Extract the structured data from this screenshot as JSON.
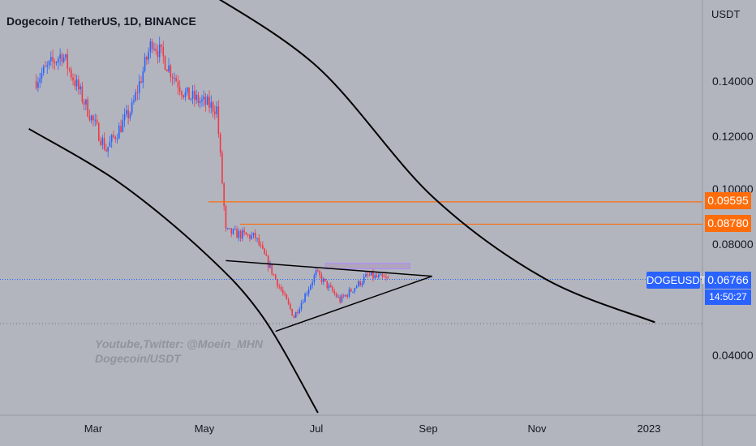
{
  "header": {
    "title": "Dogecoin / TetherUS, 1D, BINANCE"
  },
  "axis": {
    "unit": "USDT",
    "x_labels": [
      "Mar",
      "May",
      "Jul",
      "Sep",
      "Nov",
      "2023"
    ],
    "y_labels": [
      "0.14000",
      "0.12000",
      "0.10000",
      "0.08000",
      "0.04000"
    ]
  },
  "price_tags": {
    "resistance_1": "0.09595",
    "resistance_2": "0.08780",
    "symbol": "DOGEUSDT",
    "last_price": "0.06766",
    "countdown": "14:50:27"
  },
  "watermark": {
    "line1": "Youtube,Twitter: @Moein_MHN",
    "line2": "Dogecoin/USDT"
  },
  "colors": {
    "background": "#b2b5be",
    "up_candle": "#2962ff",
    "down_candle": "#f23645",
    "horizontal_levels": "#ff6d0a",
    "last_price_line": "#2962ff",
    "trendlines": "#000000"
  },
  "chart_data": {
    "type": "candlestick",
    "title": "Dogecoin / TetherUS, 1D, BINANCE",
    "ylabel": "USDT",
    "ylim": [
      0.021,
      0.17
    ],
    "x_ticks": [
      "Mar",
      "May",
      "Jul",
      "Sep",
      "Nov",
      "2023"
    ],
    "y_ticks": [
      0.04,
      0.08,
      0.1,
      0.12,
      0.14
    ],
    "series": [
      {
        "segments": [
          {
            "from_date": "2022-01-28",
            "to_date": "2022-02-12",
            "from_close": 0.14,
            "to_close": 0.15
          },
          {
            "from_date": "2022-02-12",
            "to_date": "2022-03-08",
            "from_close": 0.15,
            "to_close": 0.115
          },
          {
            "from_date": "2022-03-08",
            "to_date": "2022-03-22",
            "from_close": 0.115,
            "to_close": 0.13
          },
          {
            "from_date": "2022-03-22",
            "to_date": "2022-04-02",
            "from_close": 0.13,
            "to_close": 0.155
          },
          {
            "from_date": "2022-04-02",
            "to_date": "2022-04-20",
            "from_close": 0.155,
            "to_close": 0.135
          },
          {
            "from_date": "2022-04-20",
            "to_date": "2022-05-07",
            "from_close": 0.135,
            "to_close": 0.13
          },
          {
            "from_date": "2022-05-07",
            "to_date": "2022-05-12",
            "from_close": 0.13,
            "to_close": 0.085
          },
          {
            "from_date": "2022-05-12",
            "to_date": "2022-05-28",
            "from_close": 0.085,
            "to_close": 0.083
          },
          {
            "from_date": "2022-05-28",
            "to_date": "2022-06-18",
            "from_close": 0.083,
            "to_close": 0.054
          },
          {
            "from_date": "2022-06-18",
            "to_date": "2022-06-30",
            "from_close": 0.054,
            "to_close": 0.07
          },
          {
            "from_date": "2022-06-30",
            "to_date": "2022-07-13",
            "from_close": 0.07,
            "to_close": 0.06
          },
          {
            "from_date": "2022-07-13",
            "to_date": "2022-07-28",
            "from_close": 0.06,
            "to_close": 0.069
          },
          {
            "from_date": "2022-07-28",
            "to_date": "2022-08-08",
            "from_close": 0.069,
            "to_close": 0.0676
          }
        ]
      }
    ],
    "horizontal_levels": [
      0.09595,
      0.0878
    ],
    "last_price": 0.06766,
    "dotted_level": 0.0515,
    "box": {
      "from_date": "2022-07-05",
      "to_date": "2022-08-20",
      "low": 0.0715,
      "high": 0.0735
    },
    "triangle": {
      "upper": [
        [
          "2022-05-12",
          0.0745
        ],
        [
          "2022-09-01",
          0.0688
        ]
      ],
      "lower": [
        [
          "2022-06-08",
          0.0487
        ],
        [
          "2022-09-01",
          0.0688
        ]
      ]
    },
    "curves": [
      {
        "points": [
          [
            "2022-01-25",
            0.1226
          ],
          [
            "2022-03-15",
            0.103
          ],
          [
            "2022-05-01",
            0.077
          ],
          [
            "2022-06-01",
            0.054
          ],
          [
            "2022-07-01",
            0.019
          ]
        ]
      },
      {
        "points": [
          [
            "2022-05-01",
            0.173
          ],
          [
            "2022-07-01",
            0.145
          ],
          [
            "2022-09-01",
            0.098
          ],
          [
            "2022-11-01",
            0.068
          ],
          [
            "2022-12-31",
            0.052
          ]
        ]
      }
    ]
  }
}
